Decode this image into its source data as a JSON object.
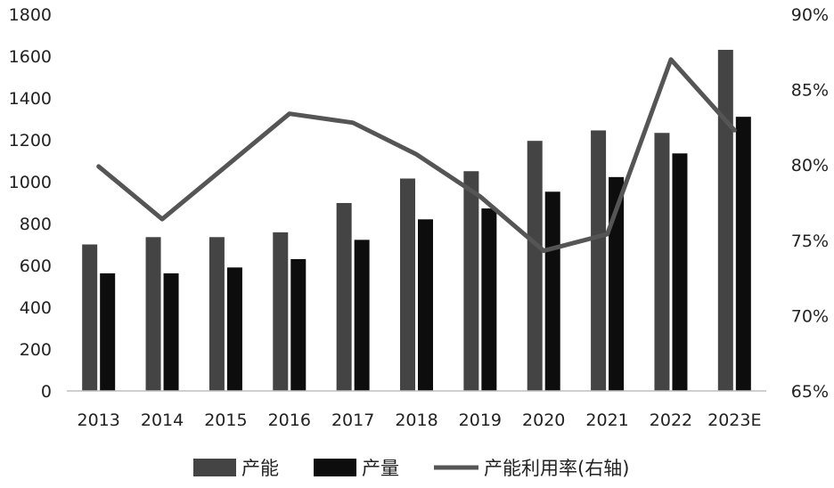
{
  "chart_data": {
    "type": "bar",
    "categories": [
      "2013",
      "2014",
      "2015",
      "2016",
      "2017",
      "2018",
      "2019",
      "2020",
      "2021",
      "2022",
      "2023E"
    ],
    "series": [
      {
        "name": "产能",
        "type": "bar",
        "axis": "left",
        "color": "#444444",
        "values": [
          700,
          735,
          735,
          758,
          898,
          1015,
          1050,
          1195,
          1245,
          1233,
          1630
        ]
      },
      {
        "name": "产量",
        "type": "bar",
        "axis": "left",
        "color": "#0d0d0d",
        "values": [
          562,
          562,
          590,
          630,
          722,
          820,
          872,
          952,
          1022,
          1135,
          1310
        ]
      },
      {
        "name": "产能利用率(右轴)",
        "type": "line",
        "axis": "right",
        "color": "#555555",
        "values": [
          79.9,
          76.4,
          79.9,
          83.4,
          82.8,
          80.7,
          77.9,
          74.3,
          75.4,
          87.0,
          82.3
        ]
      }
    ],
    "y_left": {
      "min": 0,
      "max": 1800,
      "ticks": [
        "0",
        "200",
        "400",
        "600",
        "800",
        "1000",
        "1200",
        "1400",
        "1600",
        "1800"
      ]
    },
    "y_right": {
      "min": 65,
      "max": 90,
      "unit": "%",
      "ticks": [
        "65%",
        "70%",
        "75%",
        "80%",
        "85%",
        "90%"
      ]
    },
    "grid": false,
    "legend_position": "bottom"
  }
}
